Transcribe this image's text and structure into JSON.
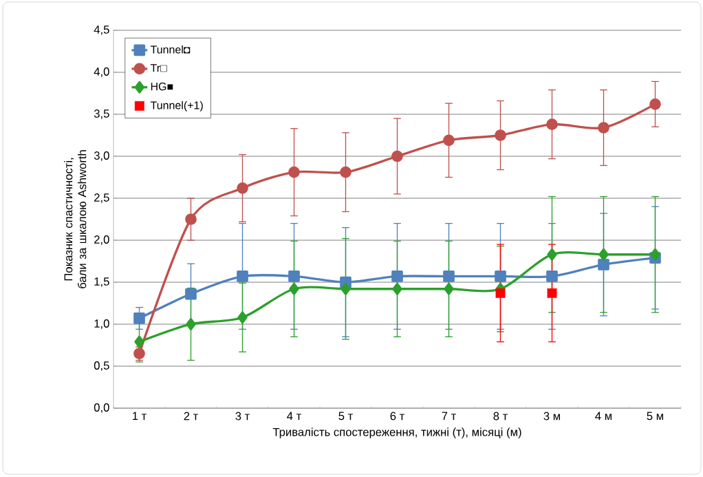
{
  "chart_data": {
    "type": "line",
    "xlabel": "Тривалість спостереження, тижні (т), місяці (м)",
    "ylabel": "Показник спастичності, бали за шкалою Ashworth",
    "categories": [
      "1 т",
      "2 т",
      "3 т",
      "4 т",
      "5 т",
      "6 т",
      "7 т",
      "8 т",
      "3 м",
      "4 м",
      "5 м"
    ],
    "ylim": [
      0,
      4.5
    ],
    "yticks": [
      {
        "value": 0,
        "label": "0,0"
      },
      {
        "value": 0.5,
        "label": "0,5"
      },
      {
        "value": 1,
        "label": "1,0"
      },
      {
        "value": 1.5,
        "label": "1,5"
      },
      {
        "value": 2,
        "label": "2,0"
      },
      {
        "value": 2.5,
        "label": "2,5"
      },
      {
        "value": 3,
        "label": "3,0"
      },
      {
        "value": 3.5,
        "label": "3,5"
      },
      {
        "value": 4,
        "label": "4,0"
      },
      {
        "value": 4.5,
        "label": "4,5"
      }
    ],
    "grid": "y",
    "legend": "top left",
    "series": [
      {
        "name": "Tunnel◘",
        "color": "#4f81bd",
        "marker": "square",
        "values": [
          1.07,
          1.36,
          1.57,
          1.57,
          1.5,
          1.57,
          1.57,
          1.57,
          1.57,
          1.71,
          1.79
        ],
        "errors": [
          0.13,
          0.36,
          0.63,
          0.63,
          0.65,
          0.63,
          0.63,
          0.63,
          0.63,
          0.61,
          0.61
        ]
      },
      {
        "name": "Tr□",
        "color": "#c0504d",
        "marker": "circle",
        "values": [
          0.65,
          2.25,
          2.62,
          2.81,
          2.81,
          3.0,
          3.19,
          3.25,
          3.38,
          3.34,
          3.62
        ],
        "errors": [
          0.08,
          0.25,
          0.4,
          0.52,
          0.47,
          0.45,
          0.44,
          0.41,
          0.41,
          0.45,
          0.27
        ]
      },
      {
        "name": "HG■",
        "color": "#2ca02c",
        "marker": "diamond",
        "values": [
          0.79,
          1.0,
          1.08,
          1.42,
          1.42,
          1.42,
          1.42,
          1.42,
          1.83,
          1.83,
          1.83
        ],
        "errors": [
          0.24,
          0.43,
          0.41,
          0.57,
          0.6,
          0.57,
          0.57,
          0.51,
          0.69,
          0.69,
          0.69
        ]
      },
      {
        "name": "Tunnel(+1)",
        "type": "scatter",
        "color": "#ff0000",
        "marker": "square",
        "values": [
          null,
          null,
          null,
          null,
          null,
          null,
          null,
          1.37,
          1.37,
          null,
          null
        ],
        "errors": [
          null,
          null,
          null,
          null,
          null,
          null,
          null,
          0.58,
          0.58,
          null,
          null
        ]
      }
    ]
  }
}
